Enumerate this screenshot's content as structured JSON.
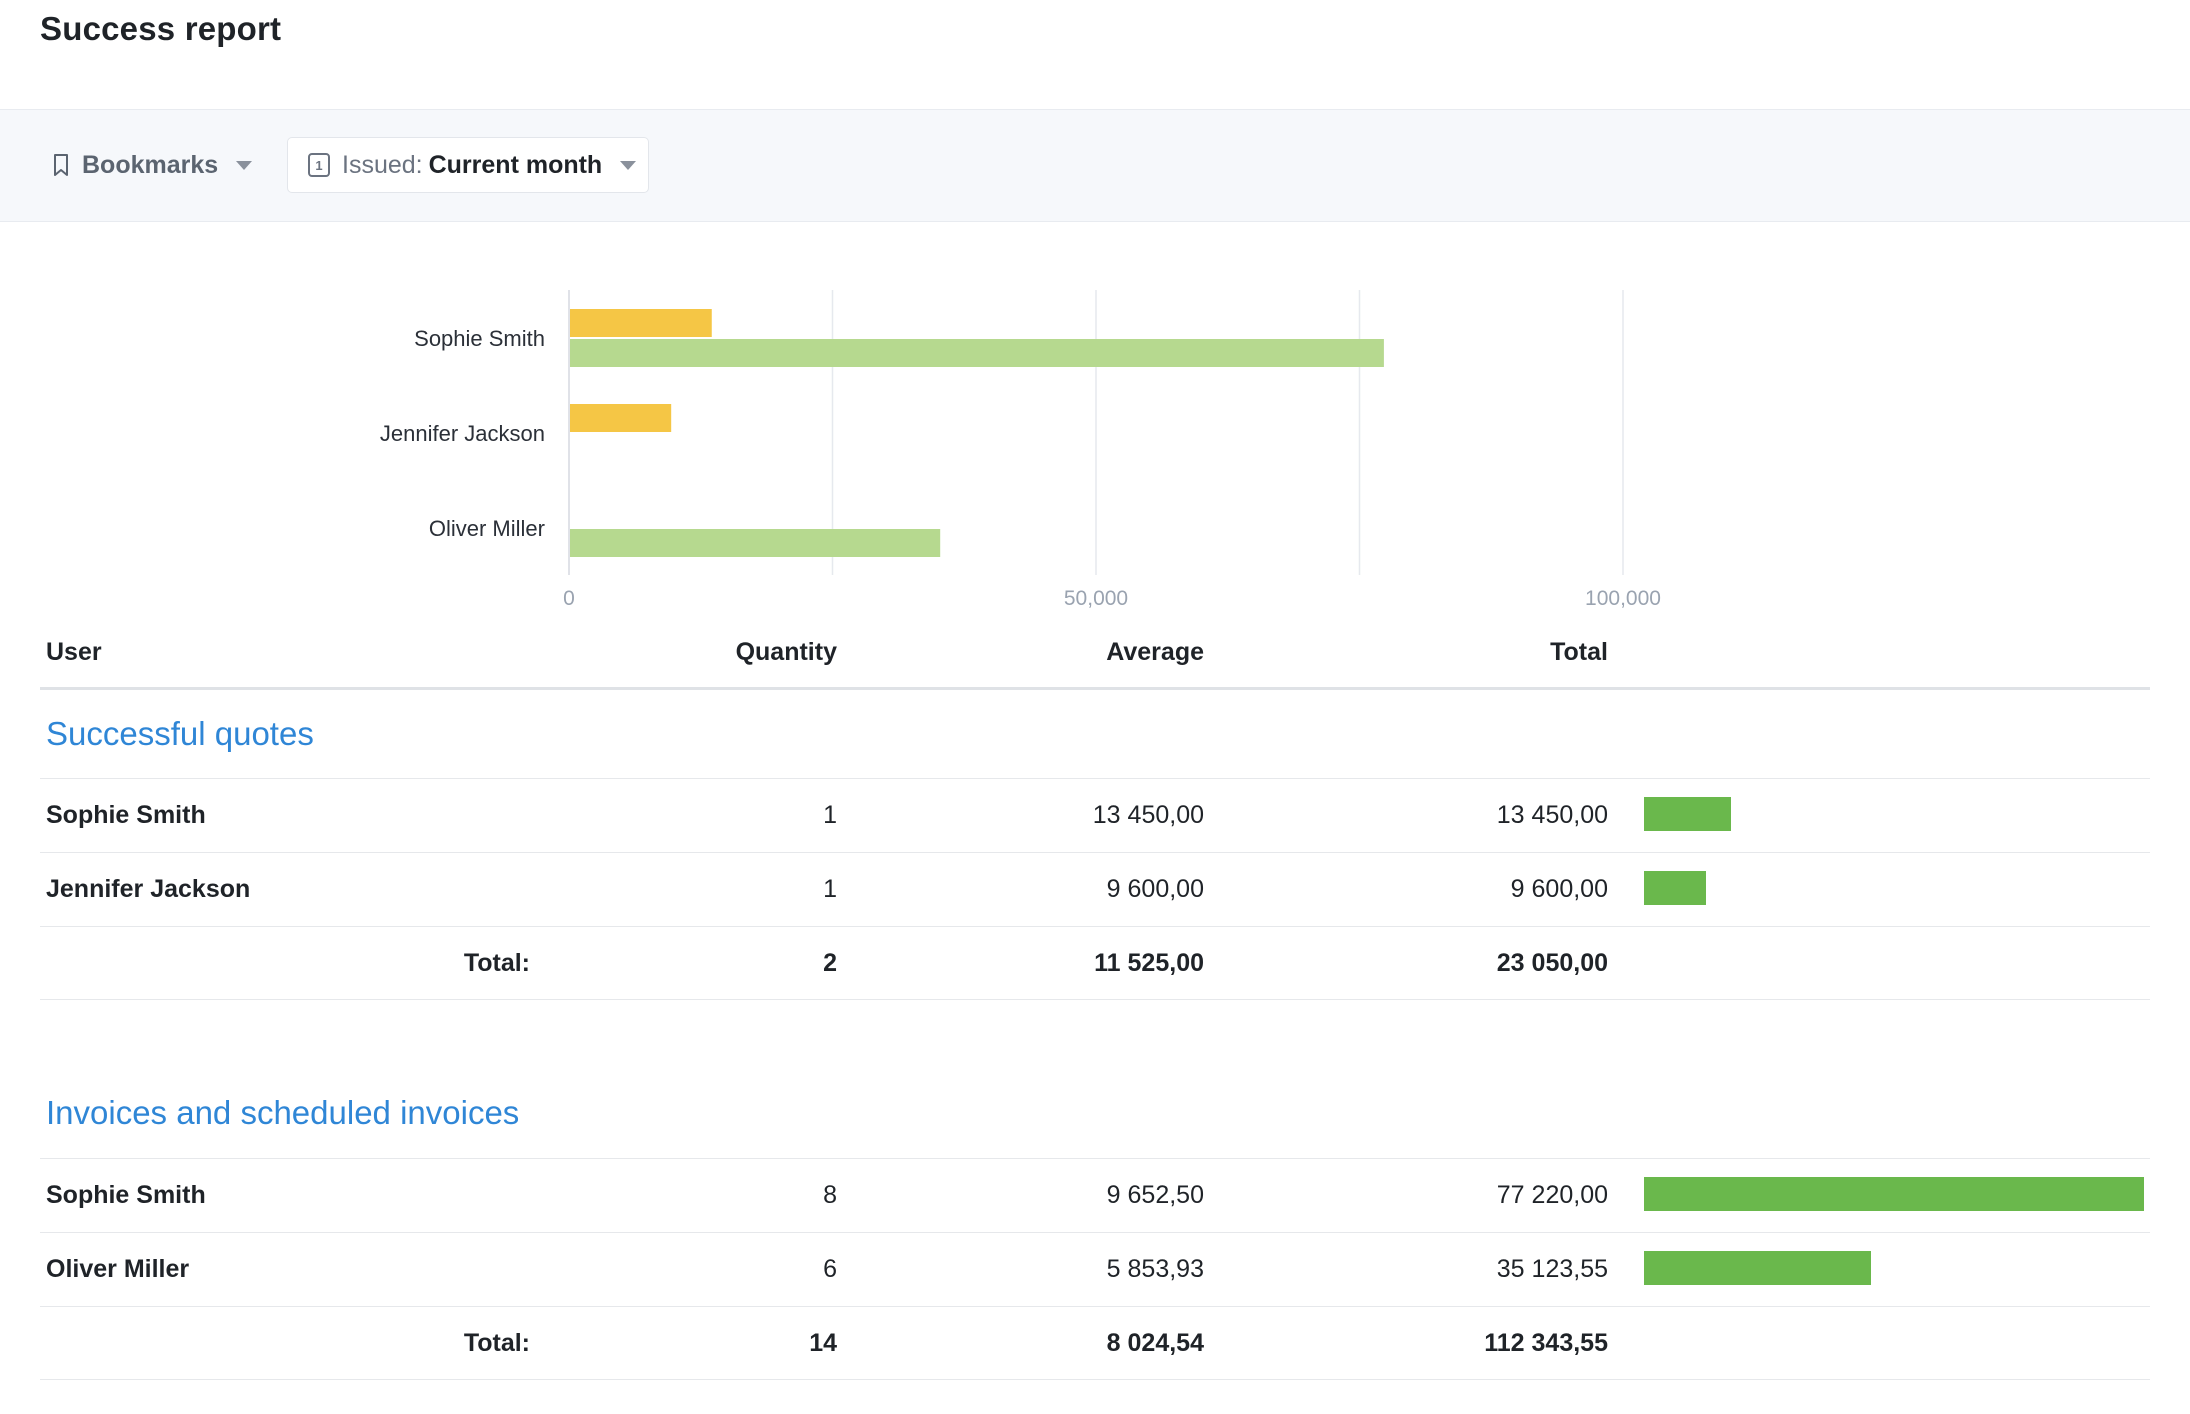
{
  "page": {
    "title": "Success report"
  },
  "filters": {
    "bookmarks_label": "Bookmarks",
    "issued_prefix": "Issued:",
    "issued_value": "Current month",
    "calendar_day": "1"
  },
  "colors": {
    "quotes": "#f5c645",
    "invoices": "#b6d98f",
    "table_bar": "#6ab84c",
    "section_title": "#2f86d6"
  },
  "chart_data": {
    "type": "bar",
    "orientation": "horizontal",
    "categories": [
      "Sophie Smith",
      "Jennifer Jackson",
      "Oliver Miller"
    ],
    "series": [
      {
        "values": [
          13450,
          9600,
          0
        ]
      },
      {
        "values": [
          77220,
          0,
          35123.55
        ]
      }
    ],
    "x_ticks": [
      {
        "value": 0,
        "label": "0"
      },
      {
        "value": 50000,
        "label": "50,000"
      },
      {
        "value": 100000,
        "label": "100,000"
      }
    ],
    "grid_values": [
      0,
      25000,
      50000,
      75000,
      100000
    ],
    "xlim": [
      0,
      100000
    ],
    "grid": true
  },
  "table": {
    "headers": {
      "user": "User",
      "quantity": "Quantity",
      "average": "Average",
      "total": "Total"
    },
    "sections": [
      {
        "title": "Successful quotes",
        "rows": [
          {
            "user": "Sophie Smith",
            "quantity": "1",
            "average": "13 450,00",
            "total": "13 450,00",
            "bar_value": 13450
          },
          {
            "user": "Jennifer Jackson",
            "quantity": "1",
            "average": "9 600,00",
            "total": "9 600,00",
            "bar_value": 9600
          }
        ],
        "summary": {
          "label": "Total:",
          "quantity": "2",
          "average": "11 525,00",
          "total": "23 050,00"
        }
      },
      {
        "title": "Invoices and scheduled invoices",
        "rows": [
          {
            "user": "Sophie Smith",
            "quantity": "8",
            "average": "9 652,50",
            "total": "77 220,00",
            "bar_value": 77220
          },
          {
            "user": "Oliver Miller",
            "quantity": "6",
            "average": "5 853,93",
            "total": "35 123,55",
            "bar_value": 35123.55
          }
        ],
        "summary": {
          "label": "Total:",
          "quantity": "14",
          "average": "8 024,54",
          "total": "112 343,55"
        }
      }
    ],
    "bar_max": 77220
  }
}
